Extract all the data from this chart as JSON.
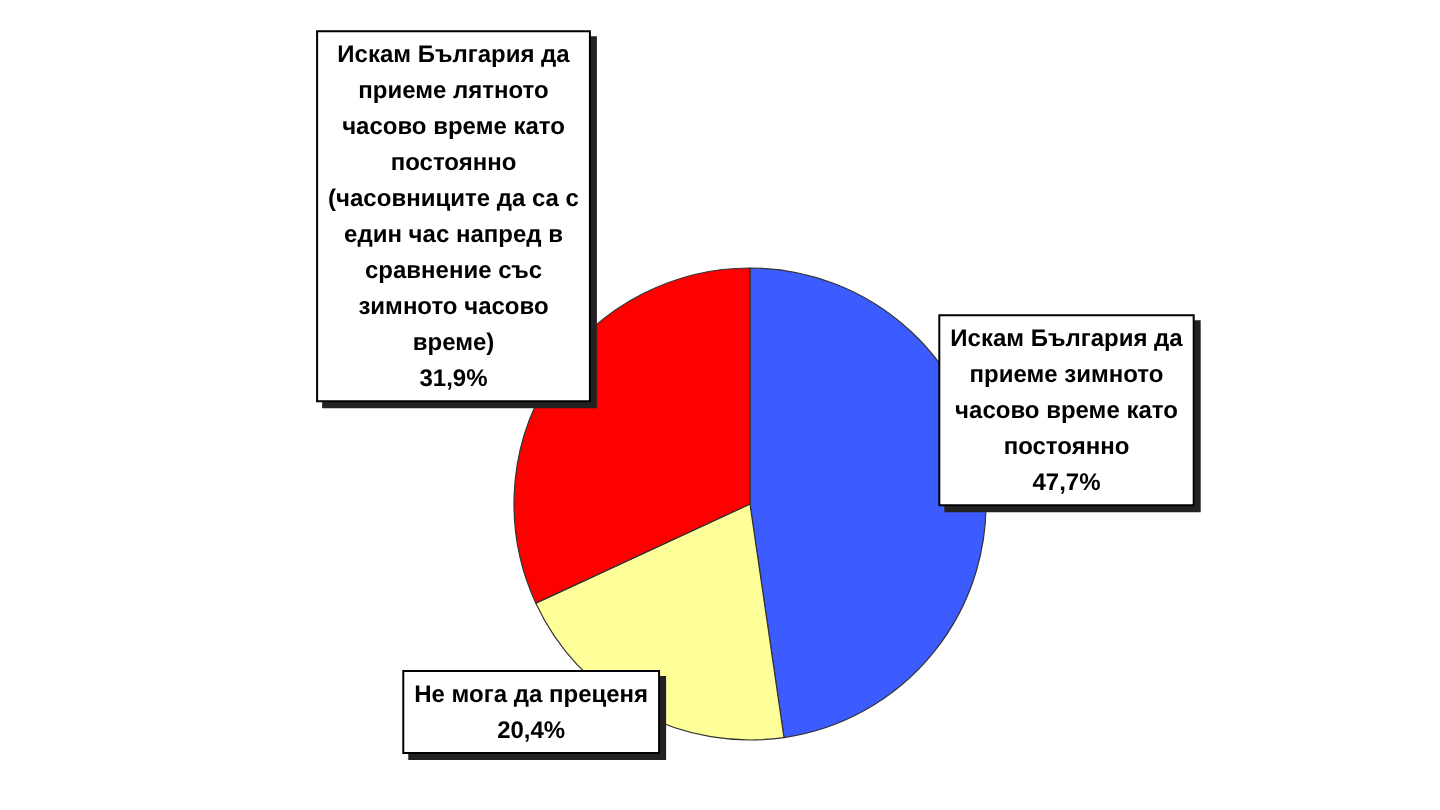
{
  "chart_data": {
    "type": "pie",
    "categories": [
      "Искам България да приеме зимното часово време като постоянно",
      "Не мога да преценя",
      "Искам България да приеме лятното часово време като постоянно (часовниците да са с един час напред в сравнение със зимното часово време)"
    ],
    "values": [
      47.7,
      20.4,
      31.9
    ],
    "value_labels": [
      "47,7%",
      "20,4%",
      "31,9%"
    ],
    "colors": [
      "#3d5cff",
      "#ffff99",
      "#ff0000"
    ],
    "legend": false
  }
}
